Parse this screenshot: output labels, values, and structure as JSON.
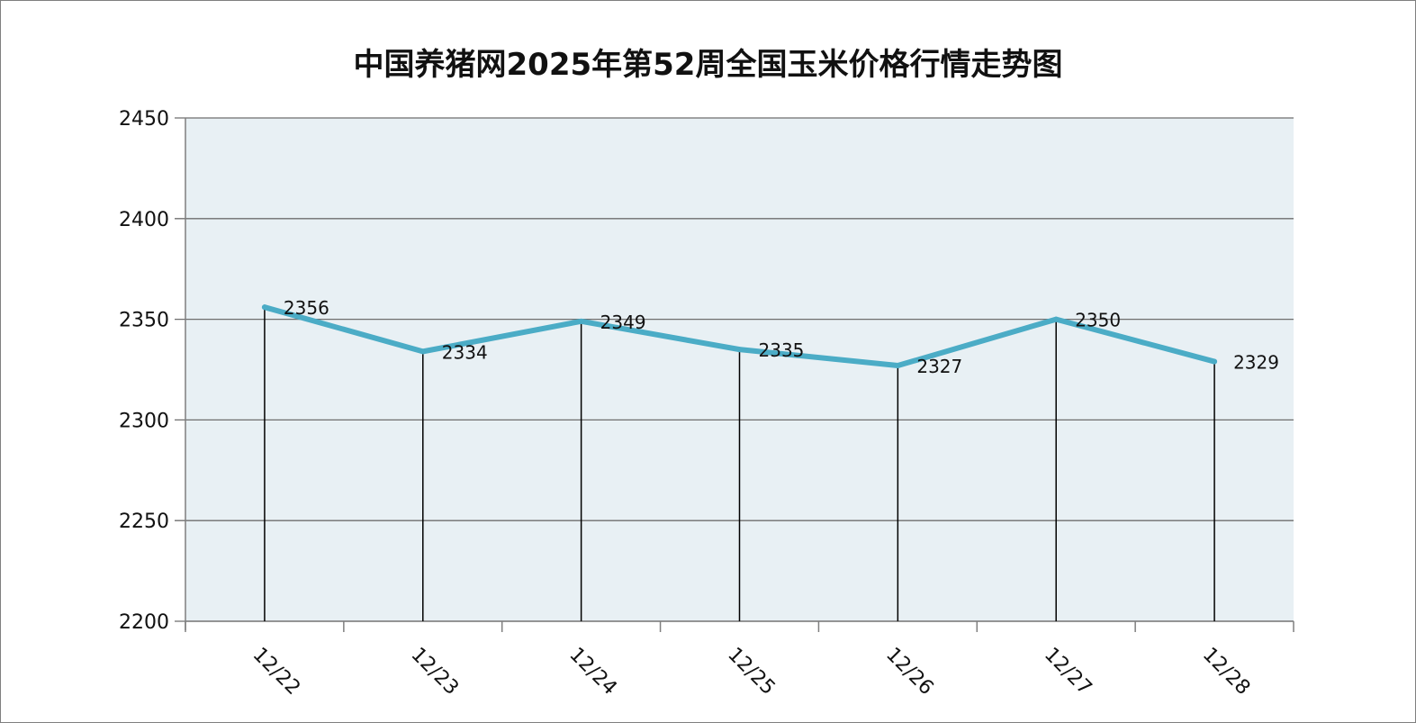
{
  "chart_data": {
    "type": "line",
    "title": "中国养猪网2025年第52周全国玉米价格行情走势图",
    "categories": [
      "12/22",
      "12/23",
      "12/24",
      "12/25",
      "12/26",
      "12/27",
      "12/28"
    ],
    "series": [
      {
        "values": [
          2356,
          2334,
          2349,
          2335,
          2327,
          2350,
          2329
        ]
      }
    ],
    "ylim": [
      2200,
      2450
    ],
    "yticks": [
      2200,
      2250,
      2300,
      2350,
      2400,
      2450
    ],
    "grid": true,
    "drop_lines": true,
    "data_labels": true,
    "legend": "none",
    "colors": {
      "line": "#4bacc6",
      "plot_background": "#e8f0f4",
      "gridline": "#6e6e6e",
      "drop_line": "#000000",
      "axis": "#7f7f7f"
    }
  }
}
